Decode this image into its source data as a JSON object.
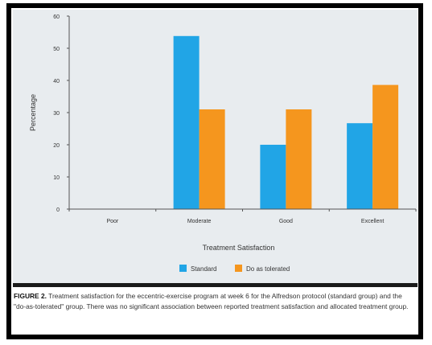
{
  "colors": {
    "standard": "#21a5e6",
    "tolerated": "#f5961e",
    "axis": "#555555",
    "text": "#333333"
  },
  "chart_data": {
    "type": "bar",
    "categories": [
      "Poor",
      "Moderate",
      "Good",
      "Excellent"
    ],
    "series": [
      {
        "name": "Standard",
        "values": [
          0,
          53.8,
          20.0,
          26.7
        ],
        "color": "#21a5e6"
      },
      {
        "name": "Do as tolerated",
        "values": [
          0,
          31.0,
          31.0,
          38.6
        ],
        "color": "#f5961e"
      }
    ],
    "xlabel": "Treatment Satisfaction",
    "ylabel": "Percentage",
    "ylim": [
      0,
      60
    ],
    "yticks": [
      "0",
      "10",
      "20",
      "30",
      "40",
      "50",
      "60"
    ],
    "grid": false,
    "legend_position": "bottom-center"
  },
  "caption": {
    "label": "FIGURE 2.",
    "text": "Treatment satisfaction for the eccentric-exercise program at week 6 for the Alfredson protocol (standard group) and the \"do-as-tolerated\" group. There was no significant association between reported treatment satisfaction and allocated treatment group."
  }
}
